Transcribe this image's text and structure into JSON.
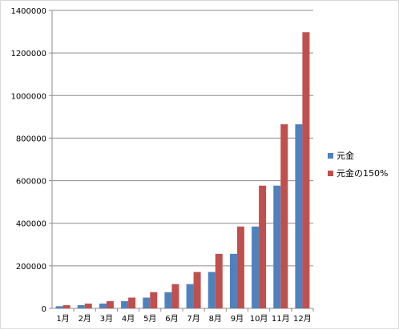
{
  "chart_data": {
    "type": "bar",
    "title": "",
    "xlabel": "",
    "ylabel": "",
    "categories": [
      "1月",
      "2月",
      "3月",
      "4月",
      "5月",
      "6月",
      "7月",
      "8月",
      "9月",
      "10月",
      "11月",
      "12月"
    ],
    "series": [
      {
        "name": "元金",
        "color": "#4f81bd",
        "values": [
          10000,
          15000,
          22500,
          33750,
          50625,
          75938,
          113906,
          170859,
          256289,
          384434,
          576650,
          864976
        ]
      },
      {
        "name": "元金の150%",
        "color": "#c0504d",
        "values": [
          15000,
          22500,
          33750,
          50625,
          75938,
          113906,
          170859,
          256289,
          384434,
          576650,
          864976,
          1297463
        ]
      }
    ],
    "ylim": [
      0,
      1400000
    ],
    "yticks": [
      "0",
      "200000",
      "400000",
      "600000",
      "800000",
      "1000000",
      "1200000",
      "1400000"
    ],
    "grid": true,
    "legend_position": "right"
  }
}
